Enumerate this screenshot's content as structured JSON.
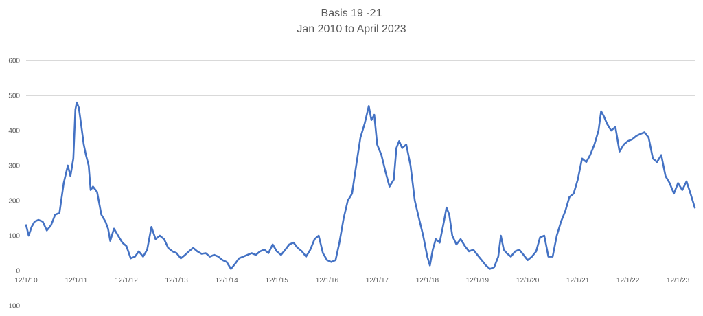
{
  "chart_data": {
    "type": "line",
    "title": "Basis 19 -21",
    "subtitle": "Jan 2010 to April 2023",
    "xlabel": "",
    "ylabel": "",
    "ylim": [
      -100,
      600
    ],
    "y_ticks": [
      -100,
      0,
      100,
      200,
      300,
      400,
      500,
      600
    ],
    "x_ticks": [
      "12/1/10",
      "12/1/11",
      "12/1/12",
      "12/1/13",
      "12/1/14",
      "12/1/15",
      "12/1/16",
      "12/1/17",
      "12/1/18",
      "12/1/19",
      "12/1/20",
      "12/1/21",
      "12/1/22",
      "12/1/23"
    ],
    "xlim": [
      "2010-12-01",
      "2024-04-01"
    ],
    "grid": true,
    "legend": "none",
    "series": [
      {
        "color": "#4472c4",
        "points": [
          [
            "2010-12-01",
            130
          ],
          [
            "2010-12-20",
            100
          ],
          [
            "2011-01-10",
            125
          ],
          [
            "2011-02-01",
            140
          ],
          [
            "2011-03-01",
            145
          ],
          [
            "2011-04-01",
            140
          ],
          [
            "2011-05-01",
            115
          ],
          [
            "2011-06-01",
            130
          ],
          [
            "2011-07-01",
            160
          ],
          [
            "2011-08-01",
            165
          ],
          [
            "2011-09-01",
            250
          ],
          [
            "2011-10-01",
            300
          ],
          [
            "2011-10-20",
            270
          ],
          [
            "2011-11-10",
            320
          ],
          [
            "2011-11-25",
            460
          ],
          [
            "2011-12-05",
            480
          ],
          [
            "2011-12-20",
            465
          ],
          [
            "2012-01-05",
            420
          ],
          [
            "2012-01-25",
            360
          ],
          [
            "2012-02-10",
            330
          ],
          [
            "2012-03-01",
            300
          ],
          [
            "2012-03-15",
            230
          ],
          [
            "2012-04-01",
            240
          ],
          [
            "2012-05-01",
            225
          ],
          [
            "2012-06-01",
            160
          ],
          [
            "2012-07-01",
            140
          ],
          [
            "2012-07-20",
            120
          ],
          [
            "2012-08-05",
            85
          ],
          [
            "2012-09-01",
            120
          ],
          [
            "2012-10-01",
            100
          ],
          [
            "2012-11-01",
            80
          ],
          [
            "2012-12-01",
            70
          ],
          [
            "2013-01-01",
            35
          ],
          [
            "2013-02-01",
            40
          ],
          [
            "2013-03-01",
            55
          ],
          [
            "2013-04-01",
            40
          ],
          [
            "2013-05-01",
            60
          ],
          [
            "2013-06-01",
            125
          ],
          [
            "2013-07-01",
            90
          ],
          [
            "2013-08-01",
            100
          ],
          [
            "2013-09-01",
            90
          ],
          [
            "2013-10-01",
            65
          ],
          [
            "2013-11-01",
            55
          ],
          [
            "2013-12-01",
            50
          ],
          [
            "2014-01-01",
            35
          ],
          [
            "2014-02-01",
            45
          ],
          [
            "2014-03-01",
            55
          ],
          [
            "2014-04-01",
            65
          ],
          [
            "2014-05-01",
            55
          ],
          [
            "2014-06-01",
            48
          ],
          [
            "2014-07-01",
            50
          ],
          [
            "2014-08-01",
            40
          ],
          [
            "2014-09-01",
            45
          ],
          [
            "2014-10-01",
            40
          ],
          [
            "2014-11-01",
            30
          ],
          [
            "2014-12-01",
            25
          ],
          [
            "2015-01-01",
            5
          ],
          [
            "2015-02-01",
            20
          ],
          [
            "2015-03-01",
            35
          ],
          [
            "2015-04-01",
            40
          ],
          [
            "2015-05-01",
            45
          ],
          [
            "2015-06-01",
            50
          ],
          [
            "2015-07-01",
            45
          ],
          [
            "2015-08-01",
            55
          ],
          [
            "2015-09-01",
            60
          ],
          [
            "2015-10-01",
            50
          ],
          [
            "2015-11-01",
            75
          ],
          [
            "2015-12-01",
            55
          ],
          [
            "2016-01-01",
            45
          ],
          [
            "2016-02-01",
            60
          ],
          [
            "2016-03-01",
            75
          ],
          [
            "2016-04-01",
            80
          ],
          [
            "2016-05-01",
            65
          ],
          [
            "2016-06-01",
            55
          ],
          [
            "2016-07-01",
            40
          ],
          [
            "2016-08-01",
            60
          ],
          [
            "2016-09-01",
            90
          ],
          [
            "2016-10-01",
            100
          ],
          [
            "2016-11-01",
            50
          ],
          [
            "2016-12-01",
            30
          ],
          [
            "2017-01-01",
            25
          ],
          [
            "2017-02-01",
            30
          ],
          [
            "2017-03-01",
            80
          ],
          [
            "2017-04-01",
            150
          ],
          [
            "2017-05-01",
            200
          ],
          [
            "2017-06-01",
            220
          ],
          [
            "2017-07-01",
            300
          ],
          [
            "2017-08-01",
            380
          ],
          [
            "2017-09-01",
            420
          ],
          [
            "2017-10-01",
            470
          ],
          [
            "2017-10-20",
            430
          ],
          [
            "2017-11-10",
            445
          ],
          [
            "2017-12-01",
            360
          ],
          [
            "2018-01-01",
            330
          ],
          [
            "2018-02-01",
            280
          ],
          [
            "2018-03-01",
            240
          ],
          [
            "2018-04-01",
            260
          ],
          [
            "2018-04-20",
            350
          ],
          [
            "2018-05-10",
            370
          ],
          [
            "2018-06-01",
            350
          ],
          [
            "2018-07-01",
            360
          ],
          [
            "2018-08-01",
            300
          ],
          [
            "2018-09-01",
            200
          ],
          [
            "2018-10-01",
            150
          ],
          [
            "2018-11-01",
            100
          ],
          [
            "2018-12-01",
            40
          ],
          [
            "2018-12-20",
            15
          ],
          [
            "2019-01-10",
            60
          ],
          [
            "2019-02-01",
            90
          ],
          [
            "2019-03-01",
            80
          ],
          [
            "2019-04-01",
            140
          ],
          [
            "2019-04-20",
            180
          ],
          [
            "2019-05-10",
            160
          ],
          [
            "2019-06-01",
            100
          ],
          [
            "2019-07-01",
            75
          ],
          [
            "2019-08-01",
            90
          ],
          [
            "2019-09-01",
            70
          ],
          [
            "2019-10-01",
            55
          ],
          [
            "2019-11-01",
            60
          ],
          [
            "2019-12-01",
            45
          ],
          [
            "2020-01-01",
            30
          ],
          [
            "2020-02-01",
            15
          ],
          [
            "2020-03-01",
            5
          ],
          [
            "2020-04-01",
            10
          ],
          [
            "2020-05-01",
            40
          ],
          [
            "2020-05-20",
            100
          ],
          [
            "2020-06-10",
            60
          ],
          [
            "2020-07-01",
            50
          ],
          [
            "2020-08-01",
            40
          ],
          [
            "2020-09-01",
            55
          ],
          [
            "2020-10-01",
            60
          ],
          [
            "2020-11-01",
            45
          ],
          [
            "2020-12-01",
            30
          ],
          [
            "2021-01-01",
            40
          ],
          [
            "2021-02-01",
            55
          ],
          [
            "2021-03-01",
            95
          ],
          [
            "2021-04-01",
            100
          ],
          [
            "2021-05-01",
            40
          ],
          [
            "2021-06-01",
            40
          ],
          [
            "2021-07-01",
            100
          ],
          [
            "2021-08-01",
            140
          ],
          [
            "2021-09-01",
            170
          ],
          [
            "2021-10-01",
            210
          ],
          [
            "2021-11-01",
            220
          ],
          [
            "2021-12-01",
            260
          ],
          [
            "2022-01-01",
            320
          ],
          [
            "2022-02-01",
            310
          ],
          [
            "2022-03-01",
            330
          ],
          [
            "2022-04-01",
            360
          ],
          [
            "2022-05-01",
            400
          ],
          [
            "2022-05-20",
            455
          ],
          [
            "2022-06-10",
            440
          ],
          [
            "2022-07-01",
            420
          ],
          [
            "2022-08-01",
            400
          ],
          [
            "2022-09-01",
            410
          ],
          [
            "2022-10-01",
            340
          ],
          [
            "2022-11-01",
            360
          ],
          [
            "2022-12-01",
            370
          ],
          [
            "2023-01-01",
            375
          ],
          [
            "2023-02-01",
            385
          ],
          [
            "2023-03-01",
            390
          ],
          [
            "2023-04-01",
            395
          ],
          [
            "2023-05-01",
            380
          ],
          [
            "2023-06-01",
            320
          ],
          [
            "2023-07-01",
            310
          ],
          [
            "2023-08-01",
            330
          ],
          [
            "2023-09-01",
            270
          ],
          [
            "2023-10-01",
            250
          ],
          [
            "2023-11-01",
            220
          ],
          [
            "2023-12-01",
            250
          ],
          [
            "2024-01-01",
            230
          ],
          [
            "2024-02-01",
            255
          ],
          [
            "2024-03-01",
            220
          ],
          [
            "2024-04-01",
            180
          ]
        ]
      }
    ]
  }
}
